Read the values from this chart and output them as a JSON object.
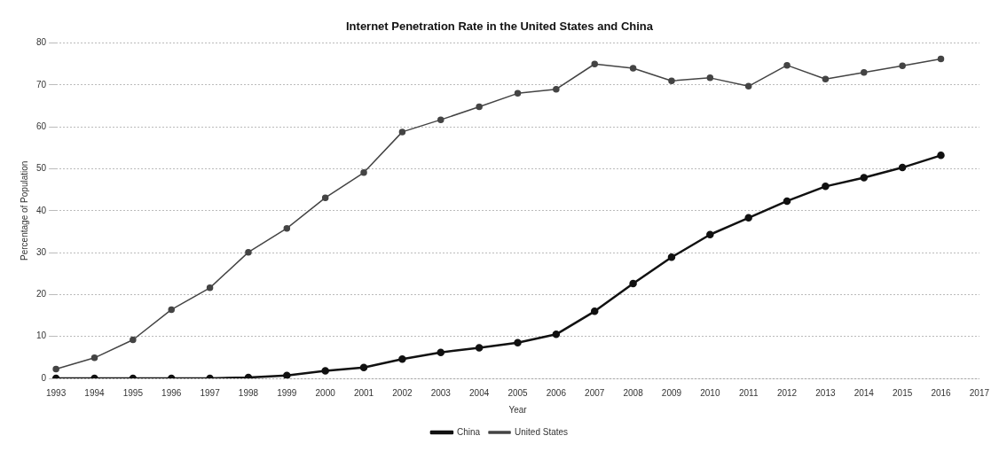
{
  "chart_data": {
    "type": "line",
    "title": "Internet Penetration Rate in the United States and China",
    "xlabel": "Year",
    "ylabel": "Percentage of Population",
    "categories": [
      "1993",
      "1994",
      "1995",
      "1996",
      "1997",
      "1998",
      "1999",
      "2000",
      "2001",
      "2002",
      "2003",
      "2004",
      "2005",
      "2006",
      "2007",
      "2008",
      "2009",
      "2010",
      "2011",
      "2012",
      "2013",
      "2014",
      "2015",
      "2016",
      "2017"
    ],
    "series": [
      {
        "name": "China",
        "color": "#111111",
        "values": [
          0,
          0,
          0,
          0,
          0,
          0.2,
          0.7,
          1.8,
          2.6,
          4.6,
          6.2,
          7.3,
          8.5,
          10.5,
          16,
          22.6,
          28.9,
          34.3,
          38.3,
          42.3,
          45.8,
          47.9,
          50.3,
          53.2,
          null
        ]
      },
      {
        "name": "United States",
        "color": "#444444",
        "values": [
          2.2,
          4.9,
          9.2,
          16.4,
          21.6,
          30.1,
          35.8,
          43.1,
          49.1,
          58.8,
          61.7,
          64.8,
          68,
          69,
          75,
          74,
          71,
          71.7,
          69.7,
          74.7,
          71.4,
          73,
          74.6,
          76.2,
          null
        ]
      }
    ],
    "ylim": [
      0,
      80
    ],
    "yticks": [
      0,
      10,
      20,
      30,
      40,
      50,
      60,
      70,
      80
    ],
    "grid": "y",
    "legend": "bottom",
    "marker": "circle",
    "line_style": "solid"
  }
}
